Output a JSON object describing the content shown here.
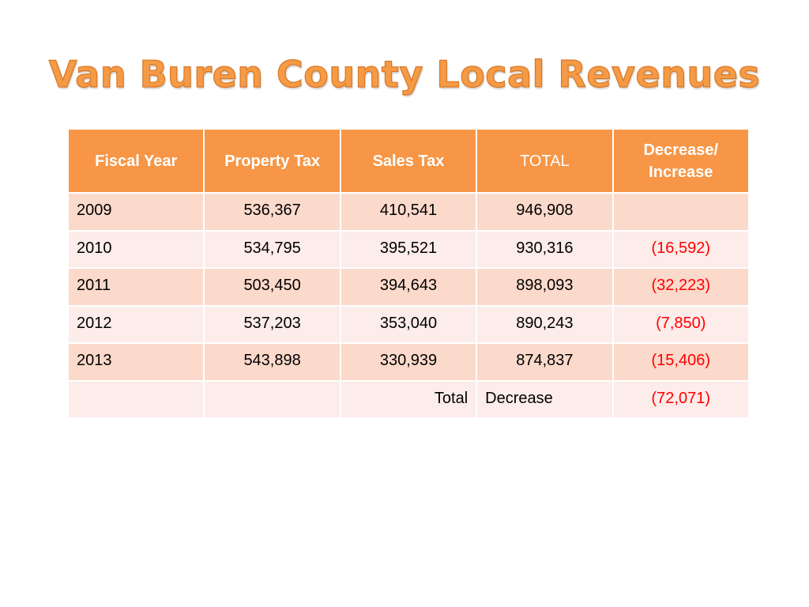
{
  "slide": {
    "title": "Van Buren County Local Revenues"
  },
  "table": {
    "headers": [
      "Fiscal Year",
      "Property Tax",
      "Sales Tax",
      "TOTAL",
      "Decrease/ Increase"
    ],
    "rows": [
      [
        "2009",
        "536,367",
        "410,541",
        "946,908",
        ""
      ],
      [
        "2010",
        "534,795",
        "395,521",
        "930,316",
        "(16,592)"
      ],
      [
        "2011",
        "503,450",
        "394,643",
        "898,093",
        "(32,223)"
      ],
      [
        "2012",
        "537,203",
        "353,040",
        "890,243",
        "(7,850)"
      ],
      [
        "2013",
        "543,898",
        "330,939",
        "874,837",
        "(15,406)"
      ]
    ],
    "summary": {
      "label_left": "Total",
      "label_right": "Decrease",
      "value": "(72,071)"
    }
  },
  "colors": {
    "title": "#f59a45",
    "header_bg": "#f79646",
    "row_odd_bg": "#fbd9cb",
    "row_even_bg": "#fcecea",
    "negative_text": "#ff0000"
  }
}
